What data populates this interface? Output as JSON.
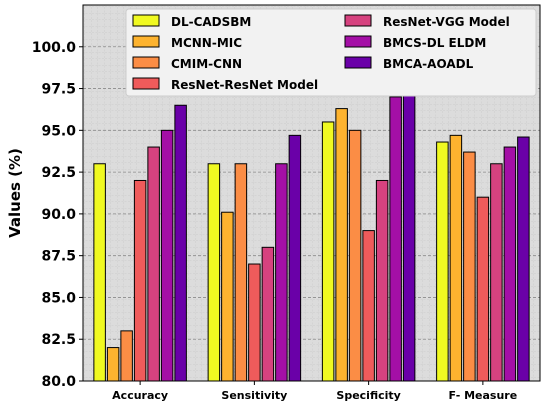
{
  "chart_data": {
    "type": "bar",
    "title": "",
    "xlabel": "",
    "ylabel": "Values (%)",
    "ylim": [
      80.0,
      102.5
    ],
    "yticks": [
      "80.0",
      "82.5",
      "85.0",
      "87.5",
      "90.0",
      "92.5",
      "95.0",
      "97.5",
      "100.0"
    ],
    "categories": [
      "Accuracy",
      "Sensitivity",
      "Specificity",
      "F- Measure"
    ],
    "grid": true,
    "legend_position": "top",
    "series": [
      {
        "name": "DL-CADSBM",
        "color": "#f0f921",
        "values": [
          93.0,
          93.0,
          95.5,
          94.3
        ]
      },
      {
        "name": "MCNN-MIC",
        "color": "#fdb32f",
        "values": [
          82.0,
          90.1,
          96.3,
          94.7
        ]
      },
      {
        "name": "CMIM-CNN",
        "color": "#fb8d45",
        "values": [
          83.0,
          93.0,
          95.0,
          93.7
        ]
      },
      {
        "name": "ResNet-ResNet Model",
        "color": "#ef5b5b",
        "values": [
          92.0,
          87.0,
          89.0,
          91.0
        ]
      },
      {
        "name": "ResNet-VGG Model",
        "color": "#d6427f",
        "values": [
          94.0,
          88.0,
          92.0,
          93.0
        ]
      },
      {
        "name": "BMCS-DL ELDM",
        "color": "#a40fa6",
        "values": [
          95.0,
          93.0,
          97.0,
          94.0
        ]
      },
      {
        "name": "BMCA-AOADL",
        "color": "#6a00a8",
        "values": [
          96.5,
          94.7,
          97.3,
          94.6
        ]
      }
    ]
  }
}
